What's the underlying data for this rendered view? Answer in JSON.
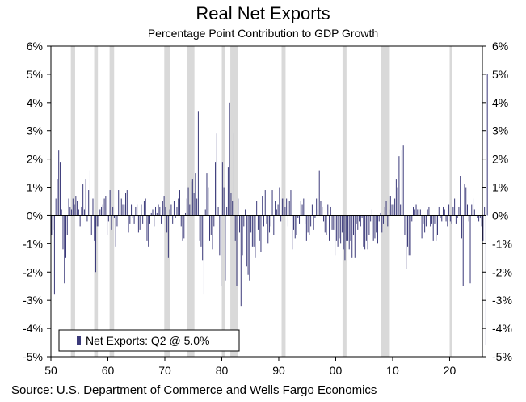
{
  "title": "Real Net Exports",
  "subtitle": "Percentage Point Contribution to GDP Growth",
  "source": "Source: U.S. Department of Commerce and Wells Fargo Economics",
  "colors": {
    "bar": "#3b3a7a",
    "recession": "#d9d9d9",
    "axis": "#000000"
  },
  "chart_data": {
    "type": "bar",
    "title": "Real Net Exports",
    "subtitle": "Percentage Point Contribution to GDP Growth",
    "xlabel": "",
    "ylabel": "",
    "ylim": [
      -5,
      6
    ],
    "xlim": [
      1950,
      2025.75
    ],
    "yticks": [
      6,
      5,
      4,
      3,
      2,
      1,
      0,
      -1,
      -2,
      -3,
      -4,
      -5
    ],
    "ytick_labels": [
      "6%",
      "5%",
      "4%",
      "3%",
      "2%",
      "1%",
      "0%",
      "-1%",
      "-2%",
      "-3%",
      "-4%",
      "-5%"
    ],
    "xticks": [
      1950,
      1960,
      1970,
      1980,
      1990,
      2000,
      2010,
      2020
    ],
    "xtick_labels": [
      "50",
      "60",
      "70",
      "80",
      "90",
      "00",
      "10",
      "20"
    ],
    "grid": false,
    "legend": {
      "position": "bottom-left",
      "entries": [
        "Net Exports: Q2 @ 5.0%"
      ]
    },
    "recessions": [
      [
        1953.5,
        1954.25
      ],
      [
        1957.6,
        1958.25
      ],
      [
        1960.3,
        1961.1
      ],
      [
        1969.9,
        1970.9
      ],
      [
        1973.9,
        1975.2
      ],
      [
        1980.0,
        1980.5
      ],
      [
        1981.5,
        1982.9
      ],
      [
        1990.5,
        1991.2
      ],
      [
        2001.2,
        2001.9
      ],
      [
        2007.9,
        2009.5
      ],
      [
        2020.0,
        2020.4
      ]
    ],
    "series": [
      {
        "frequency": "quarterly",
        "start": "1950 Q1",
        "values": [
          -0.7,
          -0.5,
          -2.8,
          0.6,
          1.3,
          2.3,
          1.9,
          0.2,
          -1.2,
          -2.4,
          -1.5,
          -0.7,
          0.6,
          0.3,
          0.2,
          0.6,
          0.4,
          0.7,
          0.5,
          0.2,
          -0.4,
          0.3,
          1.1,
          0.2,
          1.3,
          -0.2,
          0.9,
          1.6,
          -0.7,
          0.6,
          -0.9,
          -2.0,
          -0.4,
          -0.4,
          0.2,
          0.3,
          0.4,
          0.6,
          0.7,
          -0.7,
          -0.2,
          0.9,
          -0.5,
          0.3,
          -0.1,
          -1.1,
          -0.4,
          0.9,
          0.8,
          0.6,
          0.4,
          0.4,
          0.8,
          0.9,
          -0.6,
          -0.3,
          0.4,
          -0.1,
          -0.3,
          0.3,
          0.4,
          -0.6,
          -0.5,
          0.4,
          -0.3,
          0.5,
          0.6,
          -0.9,
          -1.1,
          -0.3,
          0.1,
          0.2,
          -0.4,
          0.3,
          0.1,
          0.4,
          0.3,
          -0.3,
          0.5,
          0.7,
          0.3,
          -0.6,
          -1.5,
          0.2,
          0.4,
          -0.3,
          0.5,
          -0.1,
          0.3,
          0.6,
          0.9,
          -0.4,
          -0.9,
          -0.8,
          0.1,
          0.6,
          1.0,
          0.4,
          1.2,
          1.3,
          0.8,
          1.5,
          0.6,
          3.7,
          -0.9,
          -1.1,
          -1.6,
          -2.8,
          0.2,
          1.5,
          1.0,
          -0.9,
          -0.7,
          -1.2,
          -0.4,
          1.9,
          2.9,
          0.3,
          -1.4,
          -2.5,
          1.9,
          1.0,
          -2.3,
          0.3,
          1.7,
          4.0,
          0.8,
          0.5,
          2.9,
          -0.9,
          -2.5,
          0.6,
          -0.6,
          -3.2,
          -1.4,
          -0.4,
          0.2,
          -1.8,
          -2.1,
          -2.3,
          -0.6,
          -1.1,
          -1.1,
          -1.5,
          0.5,
          -0.5,
          -0.9,
          -1.3,
          0.7,
          -0.4,
          0.9,
          -0.3,
          -1.0,
          -0.6,
          -0.4,
          0.9,
          -0.7,
          0.5,
          0.2,
          0.4,
          1.0,
          -0.2,
          0.6,
          0.6,
          0.3,
          0.6,
          -0.4,
          0.5,
          0.9,
          -1.2,
          -0.5,
          -0.8,
          -0.7,
          -0.1,
          -0.3,
          0.5,
          0.4,
          0.6,
          -0.3,
          -0.9,
          -0.6,
          -0.7,
          -0.4,
          0.4,
          -0.5,
          -0.1,
          0.6,
          0.2,
          1.6,
          0.5,
          0.3,
          -0.2,
          -0.6,
          -0.7,
          0.4,
          -0.9,
          0.3,
          -0.5,
          -0.5,
          -1.4,
          -0.9,
          -1.1,
          -0.8,
          -1.0,
          -0.6,
          -1.2,
          -1.6,
          -0.9,
          -0.9,
          -1.2,
          -0.9,
          -1.5,
          -0.7,
          -1.5,
          -0.3,
          -0.5,
          -0.2,
          -0.4,
          -0.1,
          -1.1,
          -1.2,
          -0.9,
          -1.2,
          -0.7,
          -0.2,
          0.2,
          -0.9,
          -0.8,
          -0.6,
          -1.0,
          -0.2,
          0.1,
          -0.6,
          -0.3,
          0.3,
          0.5,
          -0.4,
          0.2,
          0.7,
          0.4,
          0.4,
          0.6,
          1.3,
          1.0,
          2.1,
          0.4,
          2.3,
          2.5,
          -0.7,
          -1.9,
          -1.1,
          -1.4,
          -1.4,
          -0.2,
          0.3,
          0.2,
          0.4,
          0.2,
          0.2,
          0.2,
          -0.8,
          -0.3,
          -0.6,
          -0.4,
          0.2,
          0.3,
          -0.4,
          -0.3,
          -0.9,
          -0.3,
          -0.9,
          -0.7,
          0.3,
          -0.1,
          -0.2,
          0.3,
          0.2,
          -0.2,
          -0.4,
          0.4,
          -0.2,
          -0.3,
          0.3,
          0.6,
          -0.3,
          -0.1,
          0.3,
          1.4,
          -0.8,
          -2.5,
          1.1,
          1.0,
          0.4,
          -0.2,
          -2.4,
          0.4,
          0.6,
          0.2,
          0.0,
          -0.1,
          -0.2,
          -0.1,
          -0.4,
          -0.9,
          0.3,
          -4.6,
          5.0
        ]
      }
    ]
  }
}
